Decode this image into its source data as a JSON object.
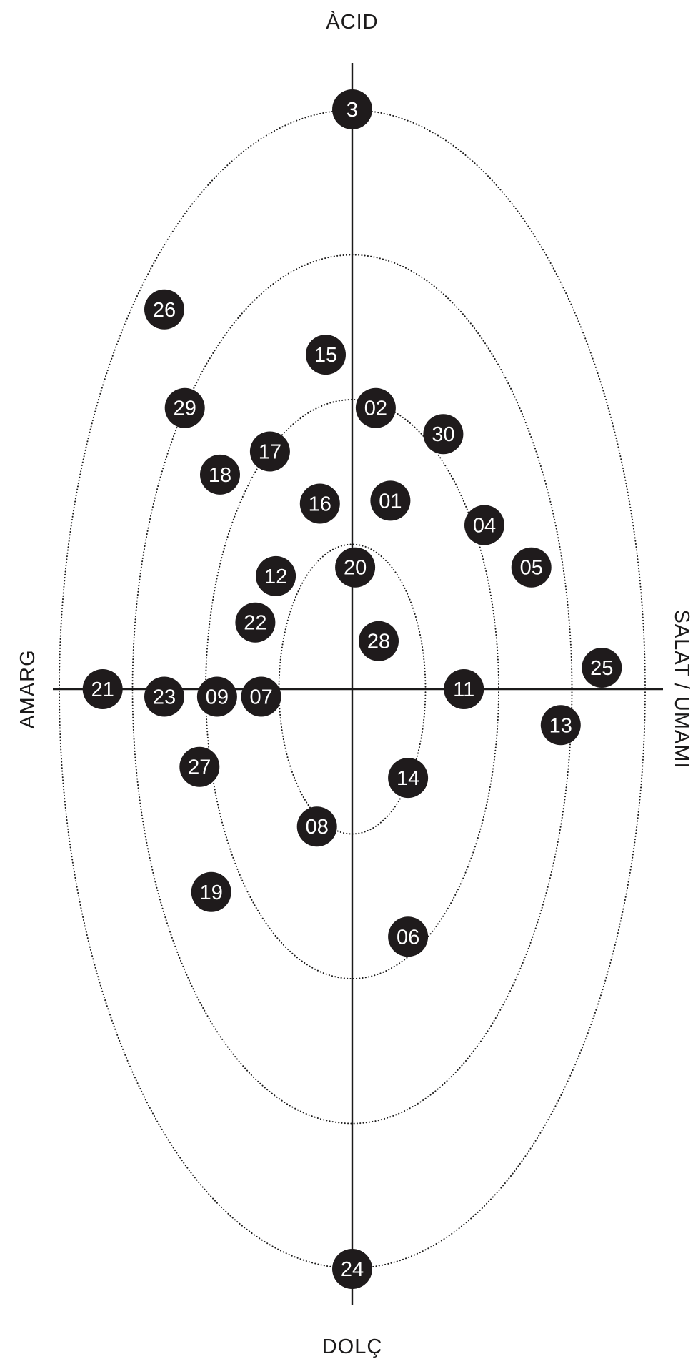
{
  "axes": {
    "top": "ÀCID",
    "bottom": "DOLÇ",
    "left": "AMARG",
    "right": "SALAT / UMAMI"
  },
  "rings": 4,
  "markers": [
    {
      "label": "3",
      "x": 0.0,
      "y": 1.0
    },
    {
      "label": "24",
      "x": 0.0,
      "y": -1.0
    },
    {
      "label": "26",
      "x": -0.64,
      "y": 0.655
    },
    {
      "label": "15",
      "x": -0.09,
      "y": 0.577
    },
    {
      "label": "29",
      "x": -0.57,
      "y": 0.485
    },
    {
      "label": "02",
      "x": 0.08,
      "y": 0.485
    },
    {
      "label": "30",
      "x": 0.31,
      "y": 0.44
    },
    {
      "label": "17",
      "x": -0.28,
      "y": 0.41
    },
    {
      "label": "18",
      "x": -0.45,
      "y": 0.37
    },
    {
      "label": "16",
      "x": -0.11,
      "y": 0.32
    },
    {
      "label": "01",
      "x": 0.13,
      "y": 0.325
    },
    {
      "label": "04",
      "x": 0.45,
      "y": 0.283
    },
    {
      "label": "05",
      "x": 0.61,
      "y": 0.21
    },
    {
      "label": "20",
      "x": 0.01,
      "y": 0.21
    },
    {
      "label": "12",
      "x": -0.26,
      "y": 0.195
    },
    {
      "label": "22",
      "x": -0.33,
      "y": 0.115
    },
    {
      "label": "28",
      "x": 0.09,
      "y": 0.083
    },
    {
      "label": "25",
      "x": 0.85,
      "y": 0.037
    },
    {
      "label": "21",
      "x": -0.85,
      "y": 0.0
    },
    {
      "label": "23",
      "x": -0.64,
      "y": -0.013
    },
    {
      "label": "09",
      "x": -0.46,
      "y": -0.013
    },
    {
      "label": "07",
      "x": -0.31,
      "y": -0.013
    },
    {
      "label": "11",
      "x": 0.38,
      "y": 0.0
    },
    {
      "label": "13",
      "x": 0.71,
      "y": -0.062
    },
    {
      "label": "27",
      "x": -0.52,
      "y": -0.134
    },
    {
      "label": "14",
      "x": 0.19,
      "y": -0.153
    },
    {
      "label": "08",
      "x": -0.12,
      "y": -0.237
    },
    {
      "label": "19",
      "x": -0.48,
      "y": -0.35
    },
    {
      "label": "06",
      "x": 0.19,
      "y": -0.427
    }
  ]
}
